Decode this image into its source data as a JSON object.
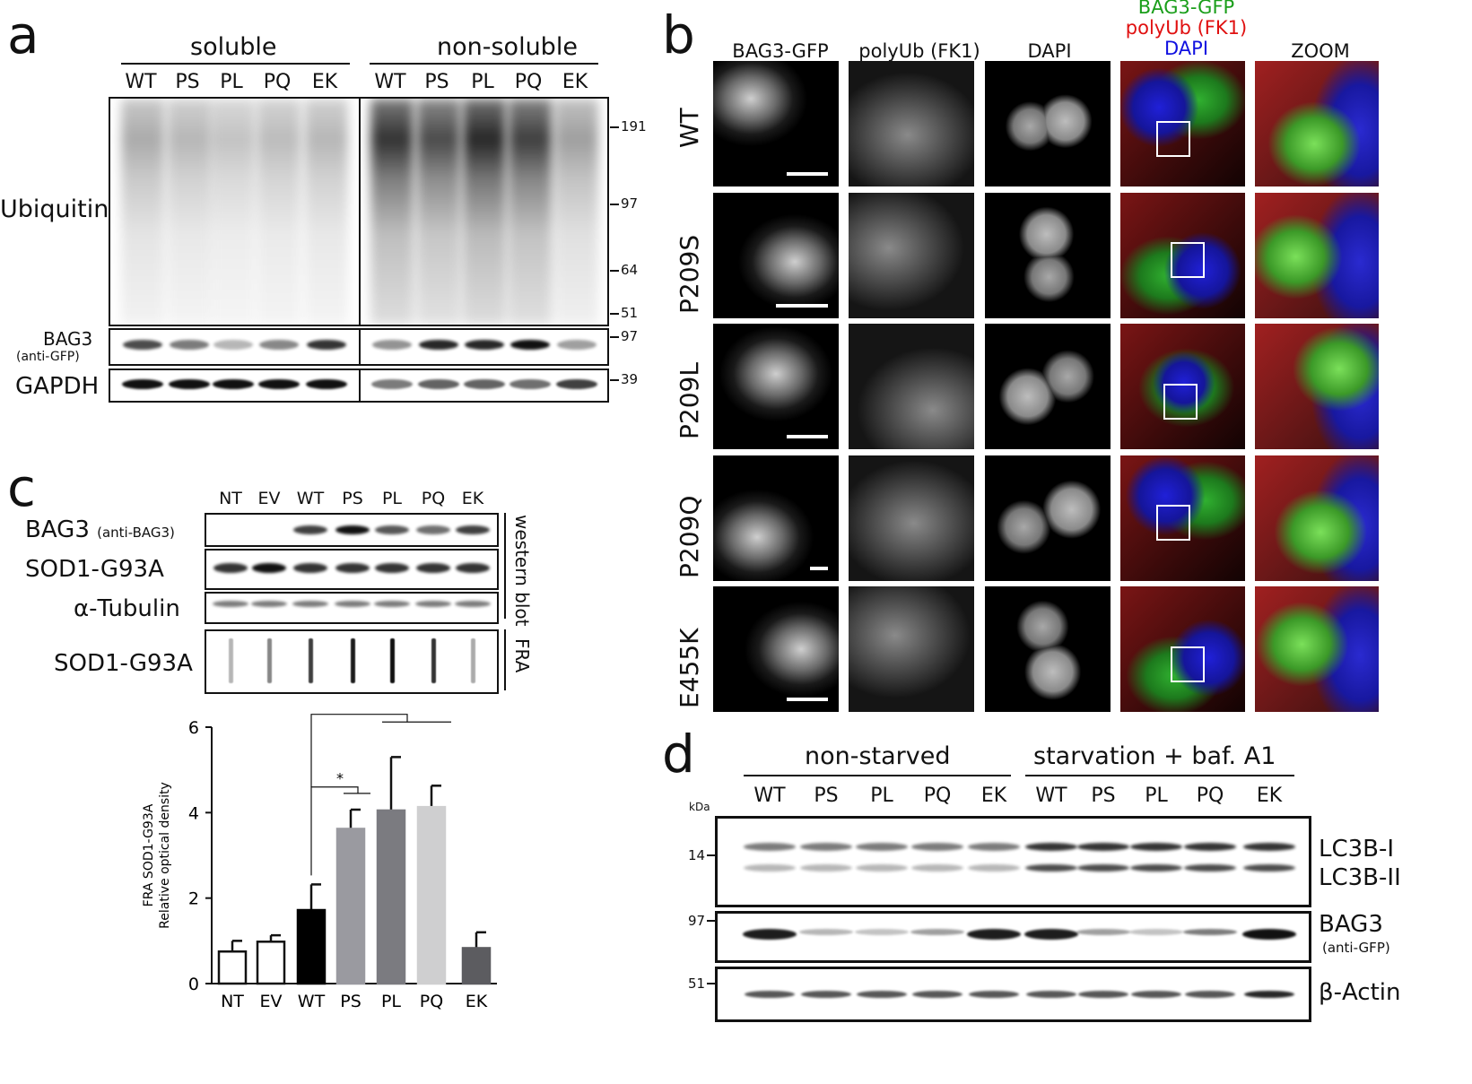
{
  "panel_a": {
    "label": "a",
    "group_soluble": "soluble",
    "group_nonsoluble": "non-soluble",
    "lanes": [
      "WT",
      "PS",
      "PL",
      "PQ",
      "EK",
      "WT",
      "PS",
      "PL",
      "PQ",
      "EK"
    ],
    "row_ubiquitin": "Ubiquitin",
    "row_bag3": "BAG3",
    "row_bag3_sub": "(anti-GFP)",
    "row_gapdh": "GAPDH",
    "markers": [
      "191",
      "97",
      "64",
      "51",
      "97",
      "39"
    ],
    "bag3_intensity": [
      0.75,
      0.55,
      0.3,
      0.5,
      0.85,
      0.45,
      0.9,
      0.9,
      1.0,
      0.4
    ],
    "gapdh_intensity": [
      1.0,
      1.0,
      1.0,
      1.0,
      1.0,
      0.55,
      0.65,
      0.65,
      0.6,
      0.8
    ]
  },
  "panel_b": {
    "label": "b",
    "columns": [
      "BAG3-GFP",
      "polyUb (FK1)",
      "DAPI",
      "ZOOM"
    ],
    "merge_label": [
      "BAG3-GFP",
      "polyUb (FK1)",
      "DAPI"
    ],
    "merge_colors": [
      "#1a9e1a",
      "#e01010",
      "#1010e0"
    ],
    "rows": [
      "WT",
      "P209S",
      "P209L",
      "P209Q",
      "E455K"
    ]
  },
  "panel_c": {
    "label": "c",
    "lanes": [
      "NT",
      "EV",
      "WT",
      "PS",
      "PL",
      "PQ",
      "EK"
    ],
    "row_bag3": "BAG3",
    "row_bag3_sub": "(anti-BAG3)",
    "row_sod1": "SOD1-G93A",
    "row_tubulin": "α-Tubulin",
    "row_sod1_fra": "SOD1-G93A",
    "side_western": "western blot",
    "side_fra": "FRA",
    "bag3_intensity": [
      0.0,
      0.0,
      0.8,
      1.0,
      0.7,
      0.6,
      0.8
    ],
    "fra_intensity": [
      0.3,
      0.5,
      0.8,
      0.95,
      1.0,
      0.85,
      0.35
    ]
  },
  "chart_data": {
    "type": "bar",
    "categories": [
      "NT",
      "EV",
      "WT",
      "PS",
      "PL",
      "PQ",
      "EK"
    ],
    "values": [
      0.75,
      0.98,
      1.72,
      3.62,
      4.05,
      4.13,
      0.83
    ],
    "errors": [
      0.25,
      0.15,
      0.6,
      0.45,
      1.25,
      0.5,
      0.37
    ],
    "colors": [
      "#ffffff",
      "#ffffff",
      "#000000",
      "#9a9aa0",
      "#7b7b80",
      "#cfcfd0",
      "#5c5c60"
    ],
    "ylabel_line1": "FRA SOD1-G93A",
    "ylabel_line2": "Relative optical density",
    "ylim": [
      0,
      6
    ],
    "yticks": [
      "0",
      "2",
      "4",
      "6"
    ],
    "sig_single": "*",
    "sig_double": "**"
  },
  "panel_d": {
    "label": "d",
    "group_nonstarved": "non-starved",
    "group_starved": "starvation + baf. A1",
    "lanes": [
      "WT",
      "PS",
      "PL",
      "PQ",
      "EK",
      "WT",
      "PS",
      "PL",
      "PQ",
      "EK"
    ],
    "kda": "kDa",
    "markers": [
      "14",
      "97",
      "51"
    ],
    "row_lc3b1": "LC3B-I",
    "row_lc3b2": "LC3B-II",
    "row_bag3": "BAG3",
    "row_bag3_sub": "(anti-GFP)",
    "row_actin": "β-Actin",
    "bag3_intensity": [
      0.95,
      0.3,
      0.25,
      0.4,
      0.95,
      0.95,
      0.4,
      0.25,
      0.55,
      1.0
    ]
  }
}
